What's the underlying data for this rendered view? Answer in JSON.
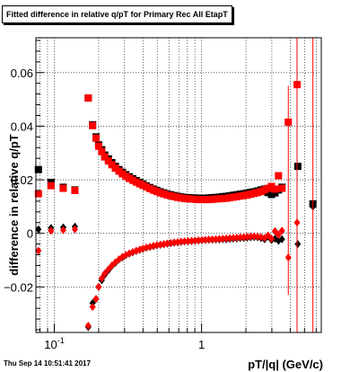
{
  "chart_data": {
    "type": "scatter",
    "title": "Fitted difference in relative q/pT for Primary Rec All EtapT",
    "xlabel": "pT/|q| (GeV/c)",
    "ylabel": "difference in relative q/pT",
    "x_scale": "log",
    "xlim": [
      0.075,
      6.5
    ],
    "ylim": [
      -0.037,
      0.073
    ],
    "grid": true,
    "x_major_ticks": [
      {
        "v": 0.1,
        "label": "10",
        "exp": "-1"
      },
      {
        "v": 1,
        "label": "1",
        "exp": ""
      }
    ],
    "y_ticks": [
      {
        "v": -0.02,
        "label": "−0.02"
      },
      {
        "v": 0,
        "label": "0"
      },
      {
        "v": 0.02,
        "label": "0.02"
      },
      {
        "v": 0.04,
        "label": "0.04"
      },
      {
        "v": 0.06,
        "label": "0.06"
      }
    ],
    "series": [
      {
        "color": "#000000",
        "marker": "square",
        "points": [
          [
            0.078,
            0.0238
          ],
          [
            0.095,
            0.019
          ],
          [
            0.115,
            0.0172
          ],
          [
            0.138,
            0.0162
          ],
          [
            0.17,
            0.0505
          ],
          [
            0.182,
            0.0405
          ],
          [
            0.192,
            0.036
          ],
          [
            0.2,
            0.033
          ],
          [
            0.21,
            0.0312
          ],
          [
            0.22,
            0.0292
          ],
          [
            0.233,
            0.0278
          ],
          [
            0.246,
            0.0264
          ],
          [
            0.26,
            0.025
          ],
          [
            0.275,
            0.0238
          ],
          [
            0.29,
            0.0228
          ],
          [
            0.306,
            0.0219
          ],
          [
            0.323,
            0.0211
          ],
          [
            0.341,
            0.0204
          ],
          [
            0.36,
            0.0197
          ],
          [
            0.38,
            0.019
          ],
          [
            0.4,
            0.0184
          ],
          [
            0.422,
            0.0177
          ],
          [
            0.446,
            0.0171
          ],
          [
            0.471,
            0.0165
          ],
          [
            0.497,
            0.016
          ],
          [
            0.525,
            0.0155
          ],
          [
            0.554,
            0.0151
          ],
          [
            0.585,
            0.0147
          ],
          [
            0.617,
            0.0144
          ],
          [
            0.652,
            0.0141
          ],
          [
            0.688,
            0.0138
          ],
          [
            0.726,
            0.0136
          ],
          [
            0.767,
            0.0134
          ],
          [
            0.81,
            0.0133
          ],
          [
            0.855,
            0.0132
          ],
          [
            0.902,
            0.0132
          ],
          [
            0.953,
            0.0131
          ],
          [
            1.006,
            0.0131
          ],
          [
            1.062,
            0.0131
          ],
          [
            1.121,
            0.0132
          ],
          [
            1.184,
            0.0133
          ],
          [
            1.25,
            0.0134
          ],
          [
            1.32,
            0.0135
          ],
          [
            1.394,
            0.0137
          ],
          [
            1.472,
            0.0138
          ],
          [
            1.554,
            0.014
          ],
          [
            1.641,
            0.0142
          ],
          [
            1.733,
            0.0144
          ],
          [
            1.83,
            0.0146
          ],
          [
            1.932,
            0.0148
          ],
          [
            2.04,
            0.015
          ],
          [
            2.154,
            0.0153
          ],
          [
            2.274,
            0.0155
          ],
          [
            2.401,
            0.0158
          ],
          [
            2.536,
            0.0162
          ],
          [
            2.677,
            0.0165
          ],
          [
            2.827,
            0.0152
          ],
          [
            2.985,
            0.0145
          ],
          [
            3.152,
            0.0151
          ],
          [
            3.328,
            0.0162
          ],
          [
            3.514,
            0.0172
          ],
          [
            4.5,
            0.025
          ],
          [
            5.7,
            0.011
          ]
        ]
      },
      {
        "color": "#000000",
        "marker": "diamond",
        "points": [
          [
            0.078,
            0.0015
          ],
          [
            0.095,
            0.002
          ],
          [
            0.115,
            0.0022
          ],
          [
            0.138,
            0.0025
          ],
          [
            0.17,
            -0.035
          ],
          [
            0.182,
            -0.026
          ],
          [
            0.192,
            -0.0245
          ],
          [
            0.2,
            -0.02
          ],
          [
            0.21,
            -0.0175
          ],
          [
            0.22,
            -0.0155
          ],
          [
            0.233,
            -0.0138
          ],
          [
            0.246,
            -0.0122
          ],
          [
            0.26,
            -0.011
          ],
          [
            0.275,
            -0.0098
          ],
          [
            0.29,
            -0.009
          ],
          [
            0.306,
            -0.0082
          ],
          [
            0.323,
            -0.0076
          ],
          [
            0.341,
            -0.0071
          ],
          [
            0.36,
            -0.0066
          ],
          [
            0.38,
            -0.0062
          ],
          [
            0.4,
            -0.0058
          ],
          [
            0.422,
            -0.0054
          ],
          [
            0.446,
            -0.0051
          ],
          [
            0.471,
            -0.0048
          ],
          [
            0.497,
            -0.0045
          ],
          [
            0.525,
            -0.0043
          ],
          [
            0.554,
            -0.0041
          ],
          [
            0.585,
            -0.0039
          ],
          [
            0.617,
            -0.0037
          ],
          [
            0.652,
            -0.0035
          ],
          [
            0.688,
            -0.0034
          ],
          [
            0.726,
            -0.0032
          ],
          [
            0.767,
            -0.0031
          ],
          [
            0.81,
            -0.003
          ],
          [
            0.855,
            -0.0029
          ],
          [
            0.902,
            -0.0028
          ],
          [
            0.953,
            -0.0027
          ],
          [
            1.006,
            -0.0026
          ],
          [
            1.062,
            -0.0025
          ],
          [
            1.121,
            -0.0024
          ],
          [
            1.184,
            -0.0024
          ],
          [
            1.25,
            -0.0023
          ],
          [
            1.32,
            -0.0023
          ],
          [
            1.394,
            -0.0022
          ],
          [
            1.472,
            -0.0022
          ],
          [
            1.554,
            -0.0021
          ],
          [
            1.641,
            -0.002
          ],
          [
            1.733,
            -0.0019
          ],
          [
            1.83,
            -0.0018
          ],
          [
            1.932,
            -0.0017
          ],
          [
            2.04,
            -0.0016
          ],
          [
            2.154,
            -0.0015
          ],
          [
            2.274,
            -0.0014
          ],
          [
            2.401,
            -0.0015
          ],
          [
            2.536,
            -0.0018
          ],
          [
            2.677,
            -0.0022
          ],
          [
            2.827,
            -0.0012
          ],
          [
            2.985,
            -0.0025
          ],
          [
            3.152,
            -0.002
          ],
          [
            3.328,
            -0.0028
          ],
          [
            3.514,
            -0.0022
          ],
          [
            4.5,
            -0.004
          ],
          [
            5.7,
            0.01
          ]
        ]
      },
      {
        "color": "#ff0000",
        "marker": "square",
        "points": [
          [
            0.078,
            0.0148
          ],
          [
            0.095,
            0.0178
          ],
          [
            0.115,
            0.0168
          ],
          [
            0.138,
            0.016
          ],
          [
            0.17,
            0.0505
          ],
          [
            0.182,
            0.0402
          ],
          [
            0.192,
            0.0355
          ],
          [
            0.2,
            0.0325
          ],
          [
            0.21,
            0.0305
          ],
          [
            0.22,
            0.0285
          ],
          [
            0.233,
            0.027
          ],
          [
            0.246,
            0.0256
          ],
          [
            0.26,
            0.0243
          ],
          [
            0.275,
            0.0232
          ],
          [
            0.29,
            0.0222
          ],
          [
            0.306,
            0.0213
          ],
          [
            0.323,
            0.0205
          ],
          [
            0.341,
            0.0198
          ],
          [
            0.36,
            0.0191
          ],
          [
            0.38,
            0.0185
          ],
          [
            0.4,
            0.0179
          ],
          [
            0.422,
            0.0173
          ],
          [
            0.446,
            0.0167
          ],
          [
            0.471,
            0.0161
          ],
          [
            0.497,
            0.0156
          ],
          [
            0.525,
            0.0151
          ],
          [
            0.554,
            0.0147
          ],
          [
            0.585,
            0.0143
          ],
          [
            0.617,
            0.014
          ],
          [
            0.652,
            0.0137
          ],
          [
            0.688,
            0.0134
          ],
          [
            0.726,
            0.0132
          ],
          [
            0.767,
            0.013
          ],
          [
            0.81,
            0.0129
          ],
          [
            0.855,
            0.0128
          ],
          [
            0.902,
            0.0127
          ],
          [
            0.953,
            0.0126
          ],
          [
            1.006,
            0.0126
          ],
          [
            1.062,
            0.0126
          ],
          [
            1.121,
            0.0126
          ],
          [
            1.184,
            0.0127
          ],
          [
            1.25,
            0.0128
          ],
          [
            1.32,
            0.0129
          ],
          [
            1.394,
            0.013
          ],
          [
            1.472,
            0.0131
          ],
          [
            1.554,
            0.0133
          ],
          [
            1.641,
            0.0135
          ],
          [
            1.733,
            0.0137
          ],
          [
            1.83,
            0.0139
          ],
          [
            1.932,
            0.0141
          ],
          [
            2.04,
            0.0143
          ],
          [
            2.154,
            0.0146
          ],
          [
            2.274,
            0.0149
          ],
          [
            2.401,
            0.0152
          ],
          [
            2.536,
            0.0156
          ],
          [
            2.677,
            0.0162
          ],
          [
            2.827,
            0.0168
          ],
          [
            2.985,
            0.0175
          ],
          [
            3.152,
            0.0165
          ],
          [
            3.328,
            0.0215
          ],
          [
            3.514,
            0.0168
          ],
          [
            3.88,
            0.0415
          ],
          [
            4.45,
            0.0555
          ]
        ],
        "errors": [
          [
            3.88,
            0.0415,
            0.055,
            -0.023
          ],
          [
            4.45,
            0.0555,
            0.073,
            -0.037
          ]
        ]
      },
      {
        "color": "#ff0000",
        "marker": "diamond",
        "points": [
          [
            0.078,
            -0.0065
          ],
          [
            0.095,
            0.001
          ],
          [
            0.115,
            0.0012
          ],
          [
            0.138,
            0.0015
          ],
          [
            0.17,
            -0.0345
          ],
          [
            0.182,
            -0.0275
          ],
          [
            0.192,
            -0.0245
          ],
          [
            0.2,
            -0.02
          ],
          [
            0.21,
            -0.0168
          ],
          [
            0.22,
            -0.015
          ],
          [
            0.233,
            -0.0135
          ],
          [
            0.246,
            -0.012
          ],
          [
            0.26,
            -0.0108
          ],
          [
            0.275,
            -0.0097
          ],
          [
            0.29,
            -0.0088
          ],
          [
            0.306,
            -0.0081
          ],
          [
            0.323,
            -0.0075
          ],
          [
            0.341,
            -0.007
          ],
          [
            0.36,
            -0.0065
          ],
          [
            0.38,
            -0.0061
          ],
          [
            0.4,
            -0.0057
          ],
          [
            0.422,
            -0.0053
          ],
          [
            0.446,
            -0.005
          ],
          [
            0.471,
            -0.0047
          ],
          [
            0.497,
            -0.0044
          ],
          [
            0.525,
            -0.0042
          ],
          [
            0.554,
            -0.004
          ],
          [
            0.585,
            -0.0038
          ],
          [
            0.617,
            -0.0036
          ],
          [
            0.652,
            -0.0034
          ],
          [
            0.688,
            -0.0033
          ],
          [
            0.726,
            -0.0031
          ],
          [
            0.767,
            -0.003
          ],
          [
            0.81,
            -0.0029
          ],
          [
            0.855,
            -0.0028
          ],
          [
            0.902,
            -0.0027
          ],
          [
            0.953,
            -0.0026
          ],
          [
            1.006,
            -0.0025
          ],
          [
            1.062,
            -0.0024
          ],
          [
            1.121,
            -0.0023
          ],
          [
            1.184,
            -0.0023
          ],
          [
            1.25,
            -0.0022
          ],
          [
            1.32,
            -0.0021
          ],
          [
            1.394,
            -0.002
          ],
          [
            1.472,
            -0.0019
          ],
          [
            1.554,
            -0.0018
          ],
          [
            1.641,
            -0.0017
          ],
          [
            1.733,
            -0.0016
          ],
          [
            1.83,
            -0.0015
          ],
          [
            1.932,
            -0.0014
          ],
          [
            2.04,
            -0.0013
          ],
          [
            2.154,
            -0.0012
          ],
          [
            2.274,
            -0.0011
          ],
          [
            2.401,
            -0.0012
          ],
          [
            2.536,
            -0.0014
          ],
          [
            2.677,
            -0.0017
          ],
          [
            2.827,
            -0.0008
          ],
          [
            2.985,
            -0.002
          ],
          [
            3.152,
            0.0008
          ],
          [
            3.328,
            -0.0005
          ],
          [
            3.514,
            0.001
          ],
          [
            3.88,
            -0.009
          ],
          [
            4.45,
            0.004
          ]
        ],
        "errors": [
          [
            4.45,
            0.004,
            0.073,
            -0.037
          ],
          [
            5.7,
            0.0,
            0.073,
            -0.037
          ]
        ]
      }
    ]
  },
  "timestamp": "Thu Sep 14 10:51:41 2017"
}
